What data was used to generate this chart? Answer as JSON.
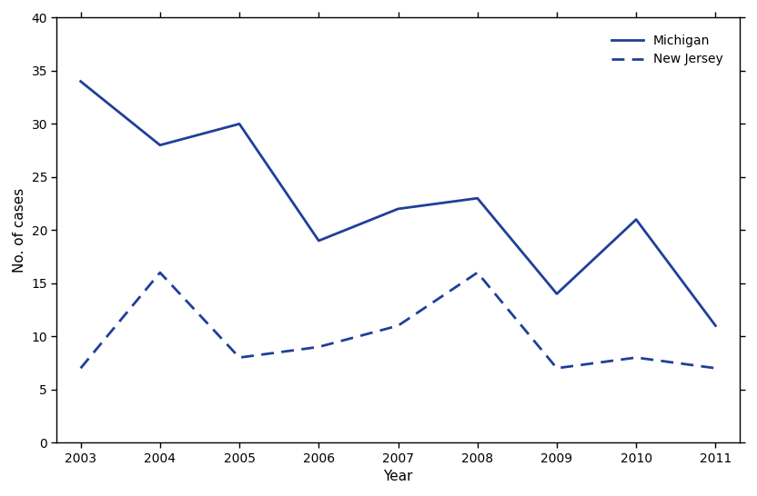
{
  "years": [
    2003,
    2004,
    2005,
    2006,
    2007,
    2008,
    2009,
    2010,
    2011
  ],
  "michigan": [
    34,
    28,
    30,
    19,
    22,
    23,
    14,
    21,
    11
  ],
  "new_jersey": [
    7,
    16,
    8,
    9,
    11,
    16,
    7,
    8,
    7
  ],
  "line_color": "#1f3f99",
  "ylim": [
    0,
    40
  ],
  "yticks": [
    0,
    5,
    10,
    15,
    20,
    25,
    30,
    35,
    40
  ],
  "xlabel": "Year",
  "ylabel": "No. of cases",
  "legend_michigan": "Michigan",
  "legend_new_jersey": "New Jersey",
  "linewidth": 2.0,
  "axis_fontsize": 11,
  "tick_fontsize": 10,
  "legend_fontsize": 10
}
